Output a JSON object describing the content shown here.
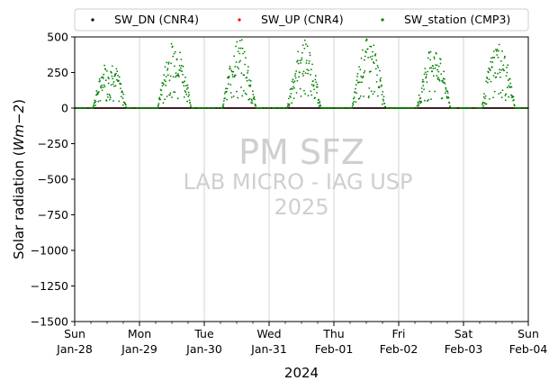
{
  "chart_data": {
    "type": "scatter",
    "title": "",
    "xlabel": "2024",
    "ylabel": "Solar radiation (Wm−2)",
    "ylabel_plain": "Solar radiation (",
    "ylabel_math": "Wm−2",
    "ylabel_close": ")",
    "ylim": [
      -1500,
      500
    ],
    "yticks": [
      "500",
      "250",
      "0",
      "−250",
      "−500",
      "−750",
      "−1000",
      "−1250",
      "−1500"
    ],
    "ytick_values": [
      500,
      250,
      0,
      -250,
      -500,
      -750,
      -1000,
      -1250,
      -1500
    ],
    "xlim_days": [
      0,
      7
    ],
    "xticks": [
      {
        "day": "Sun",
        "date": "Jan-28"
      },
      {
        "day": "Mon",
        "date": "Jan-29"
      },
      {
        "day": "Tue",
        "date": "Jan-30"
      },
      {
        "day": "Wed",
        "date": "Jan-31"
      },
      {
        "day": "Thu",
        "date": "Feb-01"
      },
      {
        "day": "Fri",
        "date": "Feb-02"
      },
      {
        "day": "Sat",
        "date": "Feb-03"
      },
      {
        "day": "Sun",
        "date": "Feb-04"
      }
    ],
    "grid_x": true,
    "zero_line": true,
    "legend_placement": "top-center",
    "series": [
      {
        "name": "SW_DN (CNR4)",
        "color": "#000000",
        "values": "flat near 0 throughout the week"
      },
      {
        "name": "SW_UP (CNR4)",
        "color": "#ff0000",
        "values": "flat near 0 throughout the week"
      },
      {
        "name": "SW_station (CMP3)",
        "color": "#008000",
        "values": "daytime peaks per day"
      }
    ],
    "daily_profile_note_days": [
      {
        "date": "Jan-28",
        "peak": 360
      },
      {
        "date": "Jan-29",
        "peak": 480
      },
      {
        "date": "Jan-30",
        "peak": 500
      },
      {
        "date": "Jan-31",
        "peak": 490
      },
      {
        "date": "Feb-01",
        "peak": 500
      },
      {
        "date": "Feb-02",
        "peak": 440
      },
      {
        "date": "Feb-03",
        "peak": 470
      }
    ],
    "watermark": [
      "PM SFZ",
      "LAB MICRO - IAG USP",
      "2025"
    ]
  }
}
